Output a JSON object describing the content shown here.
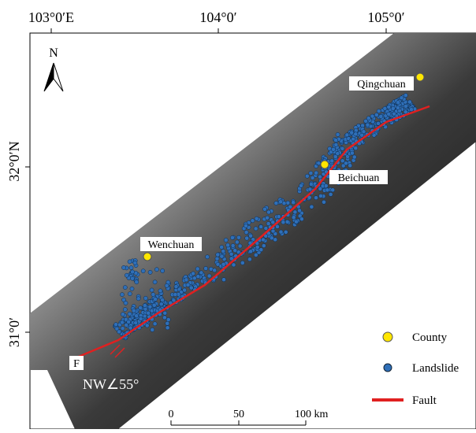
{
  "map": {
    "top_labels": [
      "103°0′E",
      "104°0′",
      "105°0′"
    ],
    "left_labels": [
      "32°0′N",
      "31°0′"
    ],
    "north": "N",
    "counties": [
      "Qingchuan",
      "Beichuan",
      "Wenchuan"
    ],
    "fault_label": "F",
    "dip_label": "NW∠55°",
    "legend": [
      "County",
      "Landslide",
      "Fault"
    ],
    "scale_labels": [
      "0",
      "50",
      "100 km"
    ]
  }
}
